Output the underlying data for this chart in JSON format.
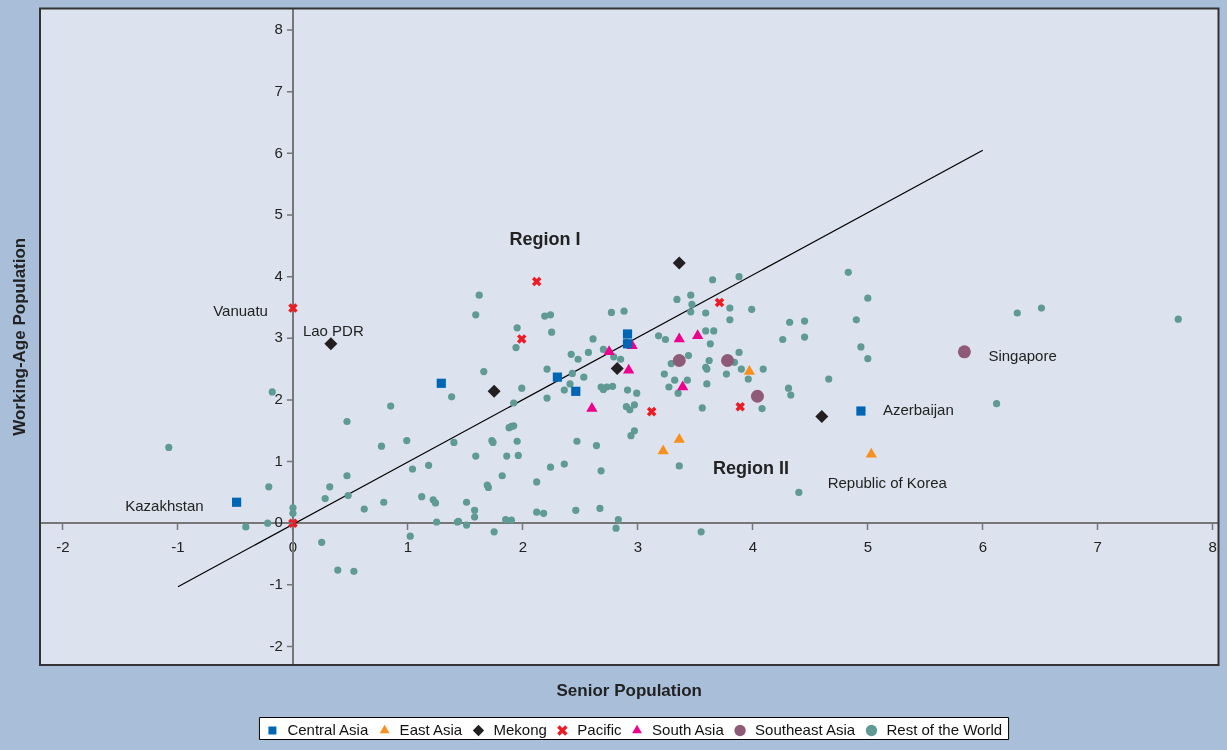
{
  "chart_data": {
    "type": "scatter",
    "xlabel": "Senior Population",
    "ylabel": "Working-Age Population",
    "xlim": [
      -2.2,
      8.05
    ],
    "ylim": [
      -2.3,
      8.35
    ],
    "xticks": [
      -2,
      -1,
      0,
      1,
      2,
      3,
      4,
      5,
      6,
      7,
      8
    ],
    "yticks": [
      -2,
      -1,
      0,
      1,
      2,
      3,
      4,
      5,
      6,
      7,
      8
    ],
    "grid": false,
    "legend": "bottom",
    "annotations": [
      "Region I",
      "Region II",
      {
        "text": "Vanuatu",
        "x": 0,
        "y": 3.49
      },
      {
        "text": "Lao PDR",
        "x": 0.33,
        "y": 2.91
      },
      {
        "text": "Kazakhstan",
        "x": -0.49,
        "y": 0.34
      },
      {
        "text": "Singapore",
        "x": 5.84,
        "y": 2.78
      },
      {
        "text": "Azerbaijan",
        "x": 4.94,
        "y": 1.82
      },
      {
        "text": "Republic of Korea",
        "x": 5.03,
        "y": 1.12
      }
    ],
    "series": [
      {
        "name": "Central Asia",
        "color": "#0066b3",
        "marker": "square",
        "x": [
          -0.49,
          1.29,
          2.3,
          2.46,
          2.91,
          2.91,
          4.94
        ],
        "values": [
          0.34,
          2.27,
          2.37,
          2.14,
          3.07,
          2.91,
          1.82
        ]
      },
      {
        "name": "East Asia",
        "color": "#f7901e",
        "marker": "triangle",
        "x": [
          3.22,
          3.36,
          3.97,
          5.03
        ],
        "values": [
          1.17,
          1.36,
          2.46,
          1.12
        ]
      },
      {
        "name": "Mekong",
        "color": "#231f20",
        "marker": "diamond",
        "x": [
          0.33,
          1.75,
          2.82,
          3.36,
          4.6
        ],
        "values": [
          2.91,
          2.14,
          2.51,
          4.22,
          1.73
        ]
      },
      {
        "name": "Pacific",
        "color": "#ed1c24",
        "marker": "cross",
        "x": [
          0,
          0,
          2.12,
          1.99,
          3.12,
          3.71,
          3.89
        ],
        "values": [
          3.49,
          0,
          3.92,
          2.99,
          1.81,
          3.58,
          1.89
        ]
      },
      {
        "name": "South Asia",
        "color": "#ec008c",
        "marker": "triangle",
        "x": [
          2.75,
          2.95,
          2.92,
          2.6,
          3.36,
          3.52,
          3.39
        ],
        "values": [
          2.78,
          2.88,
          2.48,
          1.86,
          2.99,
          3.04,
          2.21
        ]
      },
      {
        "name": "Southeast Asia",
        "color": "#8f5a78",
        "marker": "circle",
        "x": [
          3.36,
          3.78,
          4.04,
          5.84
        ],
        "values": [
          2.64,
          2.64,
          2.06,
          2.78
        ]
      },
      {
        "name": "Rest of the World",
        "color": "#5f9a94",
        "marker": "circle",
        "x": [
          -1.08,
          -0.21,
          -0.18,
          -0.41,
          -0.22,
          0,
          0,
          0.47,
          0.85,
          0.99,
          0.77,
          1.38,
          1.4,
          0.32,
          0.47,
          0.28,
          0.48,
          0.62,
          0.79,
          1.04,
          1.18,
          1.12,
          1.22,
          1.24,
          1.25,
          1.43,
          1.02,
          0.25,
          0.39,
          0.53,
          1.62,
          1.59,
          1.95,
          1.94,
          1.66,
          2.19,
          2.24,
          2.25,
          2.21,
          1.99,
          1.92,
          2.21,
          2.42,
          2.48,
          2.43,
          2.53,
          2.41,
          2.36,
          2.57,
          2.61,
          2.7,
          2.77,
          2.88,
          2.79,
          2.85,
          2.9,
          2.68,
          2.7,
          2.73,
          2.78,
          2.91,
          2.99,
          2.9,
          2.93,
          2.97,
          2.97,
          2.94,
          1.73,
          1.74,
          1.95,
          1.59,
          1.86,
          1.96,
          1.88,
          1.9,
          1.92,
          2.47,
          2.64,
          1.82,
          1.69,
          1.7,
          2.12,
          2.24,
          2.36,
          2.68,
          1.51,
          1.58,
          1.58,
          1.44,
          1.51,
          1.75,
          1.85,
          1.9,
          2.12,
          2.18,
          2.46,
          2.67,
          2.83,
          2.81,
          3.18,
          3.24,
          3.34,
          3.46,
          3.47,
          3.46,
          3.65,
          3.88,
          3.59,
          3.8,
          3.8,
          3.99,
          3.59,
          3.66,
          3.63,
          3.29,
          3.44,
          3.59,
          3.6,
          3.62,
          3.84,
          3.88,
          3.9,
          3.23,
          3.32,
          3.43,
          3.27,
          3.35,
          3.6,
          3.77,
          3.96,
          4.09,
          4.08,
          3.56,
          3.36,
          3.55,
          4.26,
          4.32,
          4.45,
          4.45,
          4.31,
          4.33,
          4.66,
          4.4,
          4.83,
          5.0,
          4.9,
          4.94,
          5.0,
          6.12,
          6.3,
          6.51,
          7.7
        ],
        "values": [
          1.23,
          0.59,
          2.13,
          -0.06,
          0,
          0.25,
          0.16,
          1.65,
          1.9,
          1.34,
          1.25,
          2.05,
          1.31,
          0.59,
          0.77,
          0.4,
          0.45,
          0.23,
          0.34,
          0.88,
          0.94,
          0.43,
          0.38,
          0.33,
          0.02,
          0.02,
          -0.21,
          -0.31,
          -0.76,
          -0.78,
          3.7,
          3.38,
          3.17,
          2.85,
          2.46,
          3.36,
          3.38,
          3.1,
          2.5,
          2.19,
          1.95,
          2.03,
          2.74,
          2.66,
          2.43,
          2.37,
          2.26,
          2.16,
          2.77,
          2.99,
          2.82,
          3.42,
          3.44,
          2.7,
          2.66,
          2.94,
          2.21,
          2.17,
          2.21,
          2.22,
          2.16,
          2.11,
          1.89,
          1.84,
          1.92,
          1.5,
          1.42,
          1.34,
          1.31,
          1.33,
          1.09,
          1.09,
          1.1,
          1.55,
          1.57,
          1.58,
          1.33,
          1.26,
          0.77,
          0.62,
          0.58,
          0.67,
          0.91,
          0.96,
          0.85,
          0.34,
          0.21,
          0.1,
          0.03,
          -0.03,
          -0.14,
          0.06,
          0.05,
          0.18,
          0.16,
          0.21,
          0.24,
          0.06,
          -0.08,
          3.04,
          2.98,
          3.63,
          3.7,
          3.55,
          3.43,
          3.95,
          4.0,
          3.41,
          3.49,
          3.3,
          3.47,
          3.12,
          3.12,
          2.91,
          2.59,
          2.72,
          2.53,
          2.5,
          2.64,
          2.61,
          2.77,
          2.5,
          2.42,
          2.32,
          2.32,
          2.21,
          2.11,
          2.26,
          2.42,
          2.34,
          2.5,
          1.86,
          1.87,
          0.93,
          -0.14,
          2.98,
          3.26,
          3.28,
          3.02,
          2.19,
          2.08,
          2.34,
          0.5,
          4.07,
          3.65,
          3.3,
          2.86,
          2.67,
          1.94,
          3.41,
          3.49,
          3.31
        ]
      },
      {
        "type": "line",
        "color": "#000000",
        "marker": "none",
        "x": [
          -1,
          6
        ],
        "values": [
          -1.03,
          6.05
        ]
      }
    ]
  }
}
